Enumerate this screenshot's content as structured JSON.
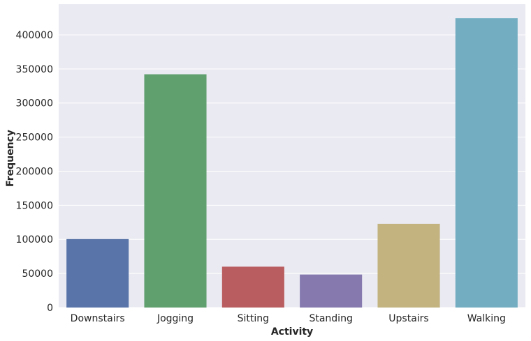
{
  "chart_data": {
    "type": "bar",
    "title": "",
    "xlabel": "Activity",
    "ylabel": "Frequency",
    "categories": [
      "Downstairs",
      "Jogging",
      "Sitting",
      "Standing",
      "Upstairs",
      "Walking"
    ],
    "values": [
      100427,
      342177,
      59939,
      48395,
      122869,
      424397
    ],
    "colors": [
      "#5874a8",
      "#5fa06e",
      "#b95d60",
      "#8579ae",
      "#c2b37f",
      "#72adc2"
    ],
    "ylim": [
      0,
      445000
    ],
    "yticks": [
      0,
      50000,
      100000,
      150000,
      200000,
      250000,
      300000,
      350000,
      400000
    ],
    "ytick_labels": [
      "0",
      "50000",
      "100000",
      "150000",
      "200000",
      "250000",
      "300000",
      "350000",
      "400000"
    ],
    "grid": true,
    "background": "#eaeaf2",
    "grid_color": "#ffffff"
  }
}
